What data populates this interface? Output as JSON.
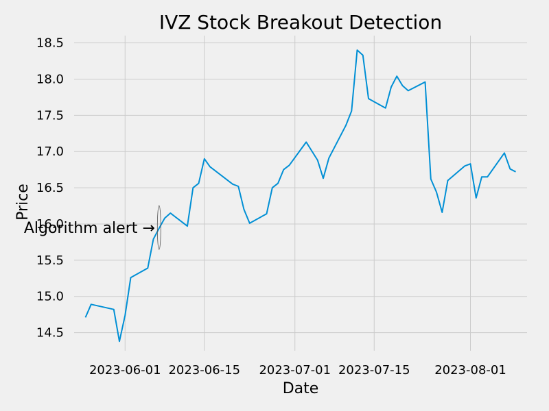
{
  "chart_data": {
    "type": "line",
    "title": "IVZ Stock Breakout Detection",
    "xlabel": "Date",
    "ylabel": "Price",
    "xlim": [
      "2023-05-23",
      "2023-08-11"
    ],
    "ylim": [
      14.25,
      18.6
    ],
    "grid": true,
    "x_ticks": [
      "2023-06-01",
      "2023-06-15",
      "2023-07-01",
      "2023-07-15",
      "2023-08-01"
    ],
    "y_ticks": [
      14.5,
      15.0,
      15.5,
      16.0,
      16.5,
      17.0,
      17.5,
      18.0,
      18.5
    ],
    "y_tick_labels": [
      "14.5",
      "15.0",
      "15.5",
      "16.0",
      "16.5",
      "17.0",
      "17.5",
      "18.0",
      "18.5"
    ],
    "series": [
      {
        "color": "#008fd5",
        "x": [
          "2023-05-25",
          "2023-05-26",
          "2023-05-30",
          "2023-05-31",
          "2023-06-01",
          "2023-06-02",
          "2023-06-05",
          "2023-06-06",
          "2023-06-07",
          "2023-06-08",
          "2023-06-09",
          "2023-06-12",
          "2023-06-13",
          "2023-06-14",
          "2023-06-15",
          "2023-06-16",
          "2023-06-20",
          "2023-06-21",
          "2023-06-22",
          "2023-06-23",
          "2023-06-26",
          "2023-06-27",
          "2023-06-28",
          "2023-06-29",
          "2023-06-30",
          "2023-07-03",
          "2023-07-05",
          "2023-07-06",
          "2023-07-07",
          "2023-07-10",
          "2023-07-11",
          "2023-07-12",
          "2023-07-13",
          "2023-07-14",
          "2023-07-17",
          "2023-07-18",
          "2023-07-19",
          "2023-07-20",
          "2023-07-21",
          "2023-07-24",
          "2023-07-25",
          "2023-07-26",
          "2023-07-27",
          "2023-07-28",
          "2023-07-31",
          "2023-08-01",
          "2023-08-02",
          "2023-08-03",
          "2023-08-04",
          "2023-08-07",
          "2023-08-08",
          "2023-08-09"
        ],
        "y": [
          14.71,
          14.89,
          14.82,
          14.38,
          14.74,
          15.26,
          15.39,
          15.79,
          15.94,
          16.08,
          16.15,
          15.97,
          16.5,
          16.56,
          16.9,
          16.79,
          16.55,
          16.52,
          16.2,
          16.01,
          16.14,
          16.5,
          16.56,
          16.75,
          16.81,
          17.13,
          16.88,
          16.63,
          16.91,
          17.36,
          17.56,
          18.4,
          18.33,
          17.73,
          17.6,
          17.89,
          18.04,
          17.91,
          17.84,
          17.96,
          16.62,
          16.44,
          16.16,
          16.6,
          16.8,
          16.83,
          16.36,
          16.65,
          16.65,
          16.98,
          16.76,
          16.72
        ]
      }
    ],
    "annotations": [
      {
        "text": "Algorithm alert →",
        "x": "2023-06-07",
        "y": 15.95
      }
    ]
  }
}
